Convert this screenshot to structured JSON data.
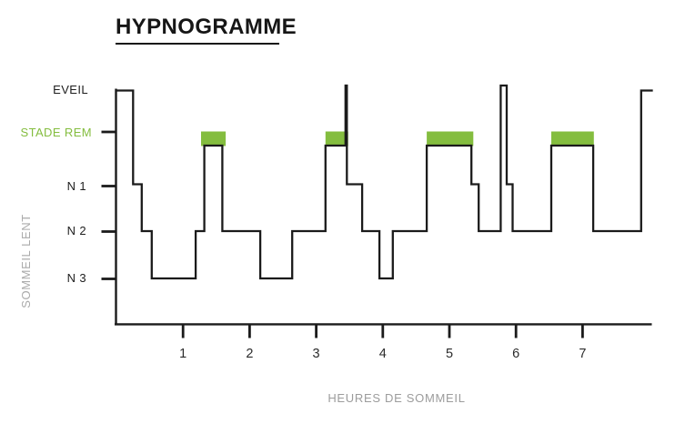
{
  "title": "HYPNOGRAMME",
  "colors": {
    "accent_green": "#84BD3F",
    "line_black": "#1b1b1b",
    "tick_label": "#2b2b2b",
    "muted_gray": "#9c9c9c"
  },
  "chart_data": {
    "type": "line",
    "subtype": "hypnogram-step",
    "title": "HYPNOGRAMME",
    "xlabel": "HEURES DE SOMMEIL",
    "ylabel": "",
    "xlim": [
      0,
      8.05
    ],
    "x_ticks": [
      "1",
      "2",
      "3",
      "4",
      "5",
      "6",
      "7"
    ],
    "y_axis": {
      "eveil": "EVEIL",
      "rem": "STADE REM",
      "n1": "N 1",
      "n2": "N 2",
      "n3": "N 3",
      "group_label": "SOMMEIL LENT"
    },
    "stage_order": [
      "EVEIL",
      "REM",
      "N1",
      "N2",
      "N3"
    ],
    "segments": [
      {
        "from": 0.0,
        "to": 0.25,
        "stage": "EVEIL"
      },
      {
        "from": 0.25,
        "to": 0.38,
        "stage": "N1"
      },
      {
        "from": 0.38,
        "to": 0.53,
        "stage": "N2"
      },
      {
        "from": 0.53,
        "to": 1.19,
        "stage": "N3"
      },
      {
        "from": 1.19,
        "to": 1.32,
        "stage": "N2"
      },
      {
        "from": 1.32,
        "to": 1.59,
        "stage": "REM"
      },
      {
        "from": 1.59,
        "to": 2.16,
        "stage": "N2"
      },
      {
        "from": 2.16,
        "to": 2.64,
        "stage": "N3"
      },
      {
        "from": 2.64,
        "to": 3.14,
        "stage": "N2"
      },
      {
        "from": 3.14,
        "to": 3.44,
        "stage": "REM"
      },
      {
        "from": 3.44,
        "to": 3.46,
        "stage": "EVEIL",
        "spike": true
      },
      {
        "from": 3.46,
        "to": 3.69,
        "stage": "N1"
      },
      {
        "from": 3.69,
        "to": 3.95,
        "stage": "N2"
      },
      {
        "from": 3.95,
        "to": 4.15,
        "stage": "N3"
      },
      {
        "from": 4.15,
        "to": 4.66,
        "stage": "N2"
      },
      {
        "from": 4.66,
        "to": 5.33,
        "stage": "REM"
      },
      {
        "from": 5.33,
        "to": 5.44,
        "stage": "N1"
      },
      {
        "from": 5.44,
        "to": 5.77,
        "stage": "N2"
      },
      {
        "from": 5.77,
        "to": 5.86,
        "stage": "EVEIL",
        "spike": true
      },
      {
        "from": 5.86,
        "to": 5.95,
        "stage": "N1"
      },
      {
        "from": 5.95,
        "to": 6.53,
        "stage": "N2"
      },
      {
        "from": 6.53,
        "to": 7.16,
        "stage": "REM"
      },
      {
        "from": 7.16,
        "to": 7.88,
        "stage": "N2"
      },
      {
        "from": 7.88,
        "to": 8.04,
        "stage": "EVEIL"
      }
    ],
    "rem_highlights": [
      {
        "from": 1.27,
        "to": 1.64
      },
      {
        "from": 3.14,
        "to": 3.48
      },
      {
        "from": 4.66,
        "to": 5.36
      },
      {
        "from": 6.53,
        "to": 7.17
      }
    ]
  }
}
